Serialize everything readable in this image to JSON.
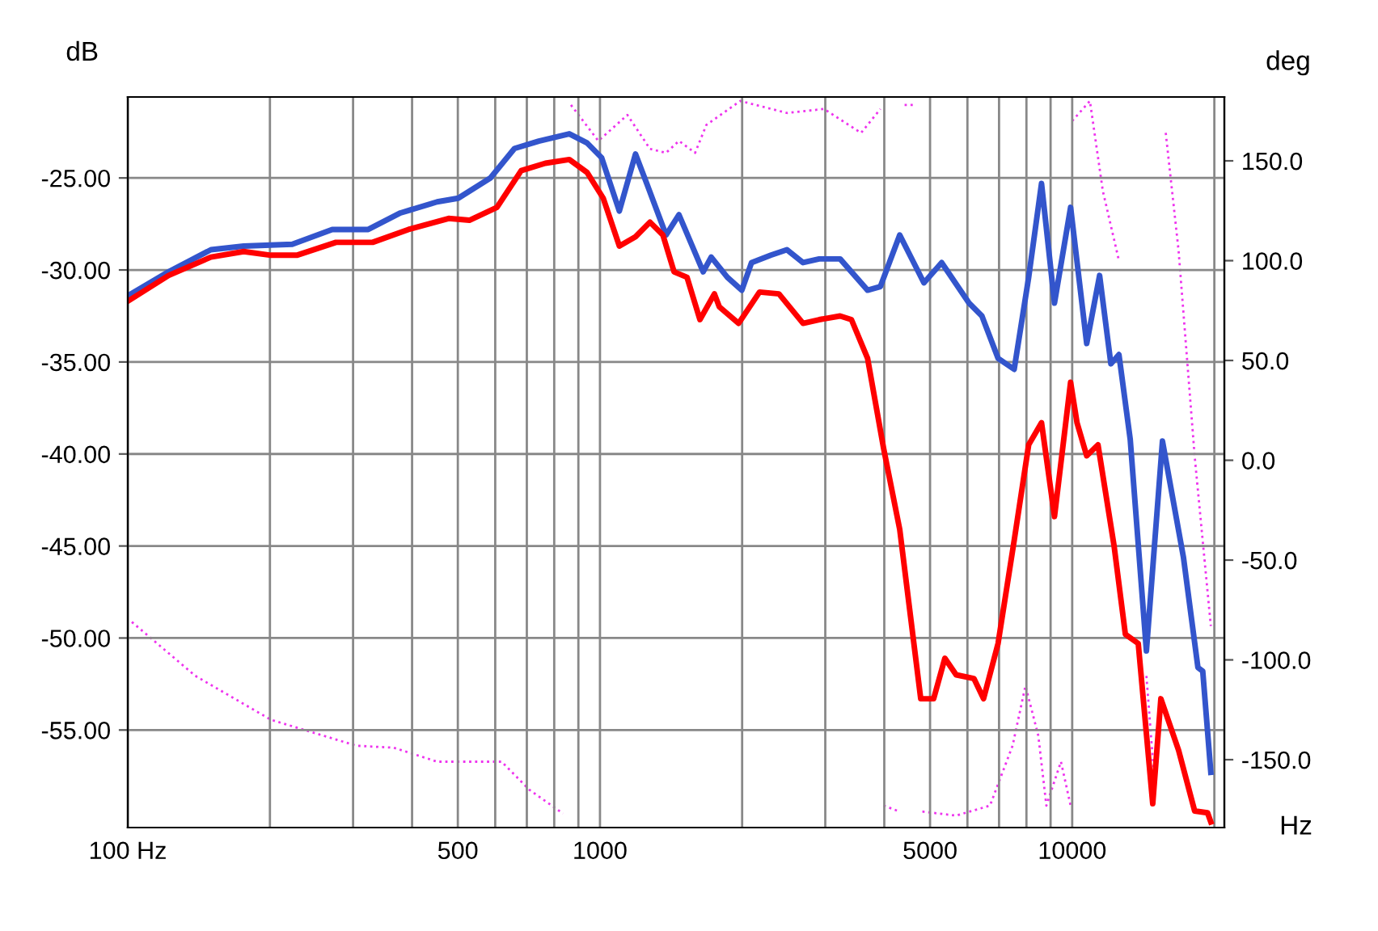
{
  "chart_data": {
    "type": "line",
    "xlabel": "Hz",
    "ylabel": "dB",
    "y2label": "deg",
    "log": "x",
    "grid": true,
    "legend": false,
    "marker": "none",
    "xlim": [
      100,
      21000
    ],
    "xticks": [
      {
        "value": 100,
        "label": "100 Hz"
      },
      {
        "value": 200,
        "label": null
      },
      {
        "value": 300,
        "label": null
      },
      {
        "value": 400,
        "label": null
      },
      500,
      {
        "value": 600,
        "label": null
      },
      {
        "value": 700,
        "label": null
      },
      {
        "value": 800,
        "label": null
      },
      {
        "value": 900,
        "label": null
      },
      1000,
      {
        "value": 2000,
        "label": null
      },
      {
        "value": 3000,
        "label": null
      },
      {
        "value": 4000,
        "label": null
      },
      5000,
      {
        "value": 6000,
        "label": null
      },
      {
        "value": 7000,
        "label": null
      },
      {
        "value": 8000,
        "label": null
      },
      {
        "value": 9000,
        "label": null
      },
      10000,
      {
        "value": 20000,
        "label": null
      }
    ],
    "ylim": [
      -60.3,
      -20.6
    ],
    "yticks": [
      {
        "value": -25,
        "label": "-25.00"
      },
      {
        "value": -30,
        "label": "-30.00"
      },
      {
        "value": -35,
        "label": "-35.00"
      },
      {
        "value": -40,
        "label": "-40.00"
      },
      {
        "value": -45,
        "label": "-45.00"
      },
      {
        "value": -50,
        "label": "-50.00"
      },
      {
        "value": -55,
        "label": "-55.00"
      }
    ],
    "y2lim": [
      -184,
      182
    ],
    "y2ticks": [
      {
        "value": 150,
        "label": "150.0"
      },
      {
        "value": 100,
        "label": "100.0"
      },
      {
        "value": 50,
        "label": "50.0"
      },
      {
        "value": 0,
        "label": "0.0"
      },
      {
        "value": -50,
        "label": "-50.0"
      },
      {
        "value": -100,
        "label": "-100.0"
      },
      {
        "value": -150,
        "label": "-150.0"
      }
    ],
    "series": [
      {
        "color": "#ee33ee",
        "axis": "y2",
        "line_style": "dotted",
        "x": [
          102,
          139,
          201,
          305,
          366,
          452,
          619,
          708,
          835,
          850,
          868,
          992,
          1143,
          1276,
          1380,
          1470,
          1590,
          1680,
          1982,
          2488,
          2982,
          3572,
          3925,
          3950,
          3987,
          4313,
          4380,
          4416,
          4666,
          4750,
          4816,
          5679,
          6697,
          7477,
          7962,
          8477,
          8817,
          9467,
          9923,
          9960,
          10000,
          10903,
          11610,
          12560,
          13270,
          14360,
          14930,
          15400,
          15780,
          16800,
          18170,
          19660
        ],
        "values": [
          -81,
          -108,
          -130,
          -143,
          -144,
          -151,
          -151,
          -165,
          -177,
          null,
          178,
          160,
          173,
          156,
          154,
          160,
          154,
          168,
          180,
          174,
          176,
          164,
          176,
          null,
          -173,
          -176,
          null,
          178,
          178,
          null,
          -176,
          -178,
          -173,
          -143,
          -113,
          -138,
          -173,
          -151,
          -173,
          null,
          170,
          180,
          135,
          100,
          null,
          -108,
          -160,
          null,
          164,
          105,
          2,
          -83
        ]
      },
      {
        "color": "#3355cc",
        "line_style": "solid",
        "x": [
          100,
          122,
          150,
          176,
          223,
          271,
          323,
          378,
          452,
          501,
          586,
          659,
          742,
          861,
          939,
          1008,
          1099,
          1189,
          1256,
          1380,
          1470,
          1654,
          1720,
          1861,
          1997,
          2094,
          2300,
          2488,
          2692,
          2912,
          3225,
          3687,
          3925,
          4313,
          4853,
          5291,
          6047,
          6439,
          6966,
          7536,
          8088,
          8611,
          9173,
          9923,
          10733,
          11430,
          12075,
          12560,
          13270,
          14360,
          15530,
          17200,
          18460,
          18900,
          19660
        ],
        "values": [
          -31.4,
          -30.1,
          -28.9,
          -28.7,
          -28.6,
          -27.8,
          -27.8,
          -26.9,
          -26.3,
          -26.1,
          -25.0,
          -23.4,
          -23.0,
          -22.6,
          -23.1,
          -23.9,
          -26.8,
          -23.7,
          -25.3,
          -28.1,
          -27.0,
          -30.1,
          -29.3,
          -30.4,
          -31.1,
          -29.6,
          -29.2,
          -28.9,
          -29.6,
          -29.4,
          -29.4,
          -31.1,
          -30.9,
          -28.1,
          -30.7,
          -29.6,
          -31.8,
          -32.5,
          -34.8,
          -35.4,
          -30.4,
          -25.3,
          -31.8,
          -26.6,
          -34.0,
          -30.3,
          -35.1,
          -34.6,
          -39.2,
          -50.7,
          -39.3,
          -45.6,
          -51.6,
          -51.8,
          -57.3
        ]
      },
      {
        "color": "#ff0000",
        "line_style": "solid",
        "x": [
          100,
          122,
          150,
          176,
          201,
          228,
          276,
          330,
          393,
          478,
          529,
          605,
          681,
          766,
          861,
          939,
          1016,
          1099,
          1189,
          1276,
          1359,
          1435,
          1529,
          1628,
          1747,
          1789,
          1966,
          2177,
          2393,
          2692,
          2912,
          3225,
          3408,
          3687,
          3987,
          4313,
          4778,
          5089,
          5375,
          5679,
          6192,
          6490,
          6966,
          7536,
          8088,
          8611,
          9173,
          9923,
          10237,
          10733,
          11340,
          12267,
          12960,
          13800,
          14810,
          15410,
          16800,
          18170,
          19350,
          19660
        ],
        "values": [
          -31.7,
          -30.3,
          -29.3,
          -29.0,
          -29.2,
          -29.2,
          -28.5,
          -28.5,
          -27.8,
          -27.2,
          -27.3,
          -26.6,
          -24.6,
          -24.2,
          -24.0,
          -24.7,
          -26.1,
          -28.7,
          -28.2,
          -27.4,
          -28.1,
          -30.1,
          -30.4,
          -32.7,
          -31.3,
          -32.0,
          -32.9,
          -31.2,
          -31.3,
          -32.9,
          -32.7,
          -32.5,
          -32.7,
          -34.8,
          -39.7,
          -44.1,
          -53.3,
          -53.3,
          -51.1,
          -52.0,
          -52.2,
          -53.3,
          -50.3,
          -44.7,
          -39.5,
          -38.3,
          -43.4,
          -36.1,
          -38.3,
          -40.1,
          -39.5,
          -45.0,
          -49.8,
          -50.3,
          -59.0,
          -53.3,
          -56.1,
          -59.4,
          -59.5,
          -60.0
        ]
      }
    ]
  }
}
